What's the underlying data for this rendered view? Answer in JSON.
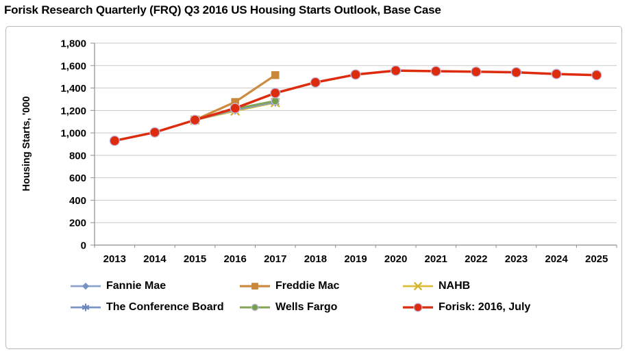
{
  "title": "Forisk Research Quarterly (FRQ) Q3 2016 US Housing Starts Outlook, Base Case",
  "chart_data": {
    "type": "line",
    "title": "Forisk Research Quarterly (FRQ) Q3 2016 US Housing Starts Outlook, Base Case",
    "xlabel": "",
    "ylabel": "Housing Starts, '000",
    "x": [
      2013,
      2014,
      2015,
      2016,
      2017,
      2018,
      2019,
      2020,
      2021,
      2022,
      2023,
      2024,
      2025
    ],
    "ylim": [
      0,
      1800
    ],
    "ytick_step": 200,
    "grid": true,
    "legend_position": "bottom",
    "series": [
      {
        "name": "Fannie Mae",
        "color": "#8CA3CE",
        "marker": "diamond",
        "marker_color": "#7690C3",
        "line_width": 2.75,
        "marker_size": 6,
        "x": [
          2015,
          2016,
          2017
        ],
        "values": [
          1115,
          1210,
          1280
        ]
      },
      {
        "name": "Freddie Mac",
        "color": "#CC8B3F",
        "marker": "square",
        "marker_color": "#C8873B",
        "line_width": 3.25,
        "marker_size": 5.75,
        "x": [
          2015,
          2016,
          2017
        ],
        "values": [
          1115,
          1275,
          1515
        ]
      },
      {
        "name": "NAHB",
        "color": "#DCBD3B",
        "marker": "x",
        "marker_color": "#D4B32E",
        "line_width": 2.75,
        "marker_size": 5.5,
        "x": [
          2015,
          2016,
          2017
        ],
        "values": [
          1115,
          1195,
          1270
        ]
      },
      {
        "name": "The Conference Board",
        "color": "#7C94C5",
        "marker": "asterisk",
        "marker_color": "#6A86BD",
        "line_width": 2.75,
        "marker_size": 5.5,
        "x": [
          2015,
          2016,
          2017
        ],
        "values": [
          1115,
          1205,
          1275
        ]
      },
      {
        "name": "Wells Fargo",
        "color": "#82A558",
        "marker": "circle",
        "marker_color": "#74A04C",
        "marker_stroke": "#C6B9DB",
        "line_width": 3,
        "marker_size": 5.5,
        "x": [
          2015,
          2016,
          2017
        ],
        "values": [
          1115,
          1215,
          1285
        ]
      },
      {
        "name": "Forisk: 2016, July",
        "color": "#DD2B0D",
        "marker": "circle",
        "marker_color": "#DD2B0D",
        "marker_stroke": "#C6B9DB",
        "line_width": 3.5,
        "marker_size": 7,
        "x": [
          2013,
          2014,
          2015,
          2016,
          2017,
          2018,
          2019,
          2020,
          2021,
          2022,
          2023,
          2024,
          2025
        ],
        "values": [
          930,
          1005,
          1115,
          1220,
          1355,
          1450,
          1520,
          1555,
          1550,
          1545,
          1540,
          1525,
          1515
        ]
      }
    ],
    "legend_rows": [
      [
        0,
        1,
        2
      ],
      [
        3,
        4,
        5
      ]
    ]
  },
  "colors": {
    "grid": "#C9C9C9",
    "axis": "#8E8E8E",
    "frame_border": "#B9B9B9",
    "title_text": "#000000"
  }
}
